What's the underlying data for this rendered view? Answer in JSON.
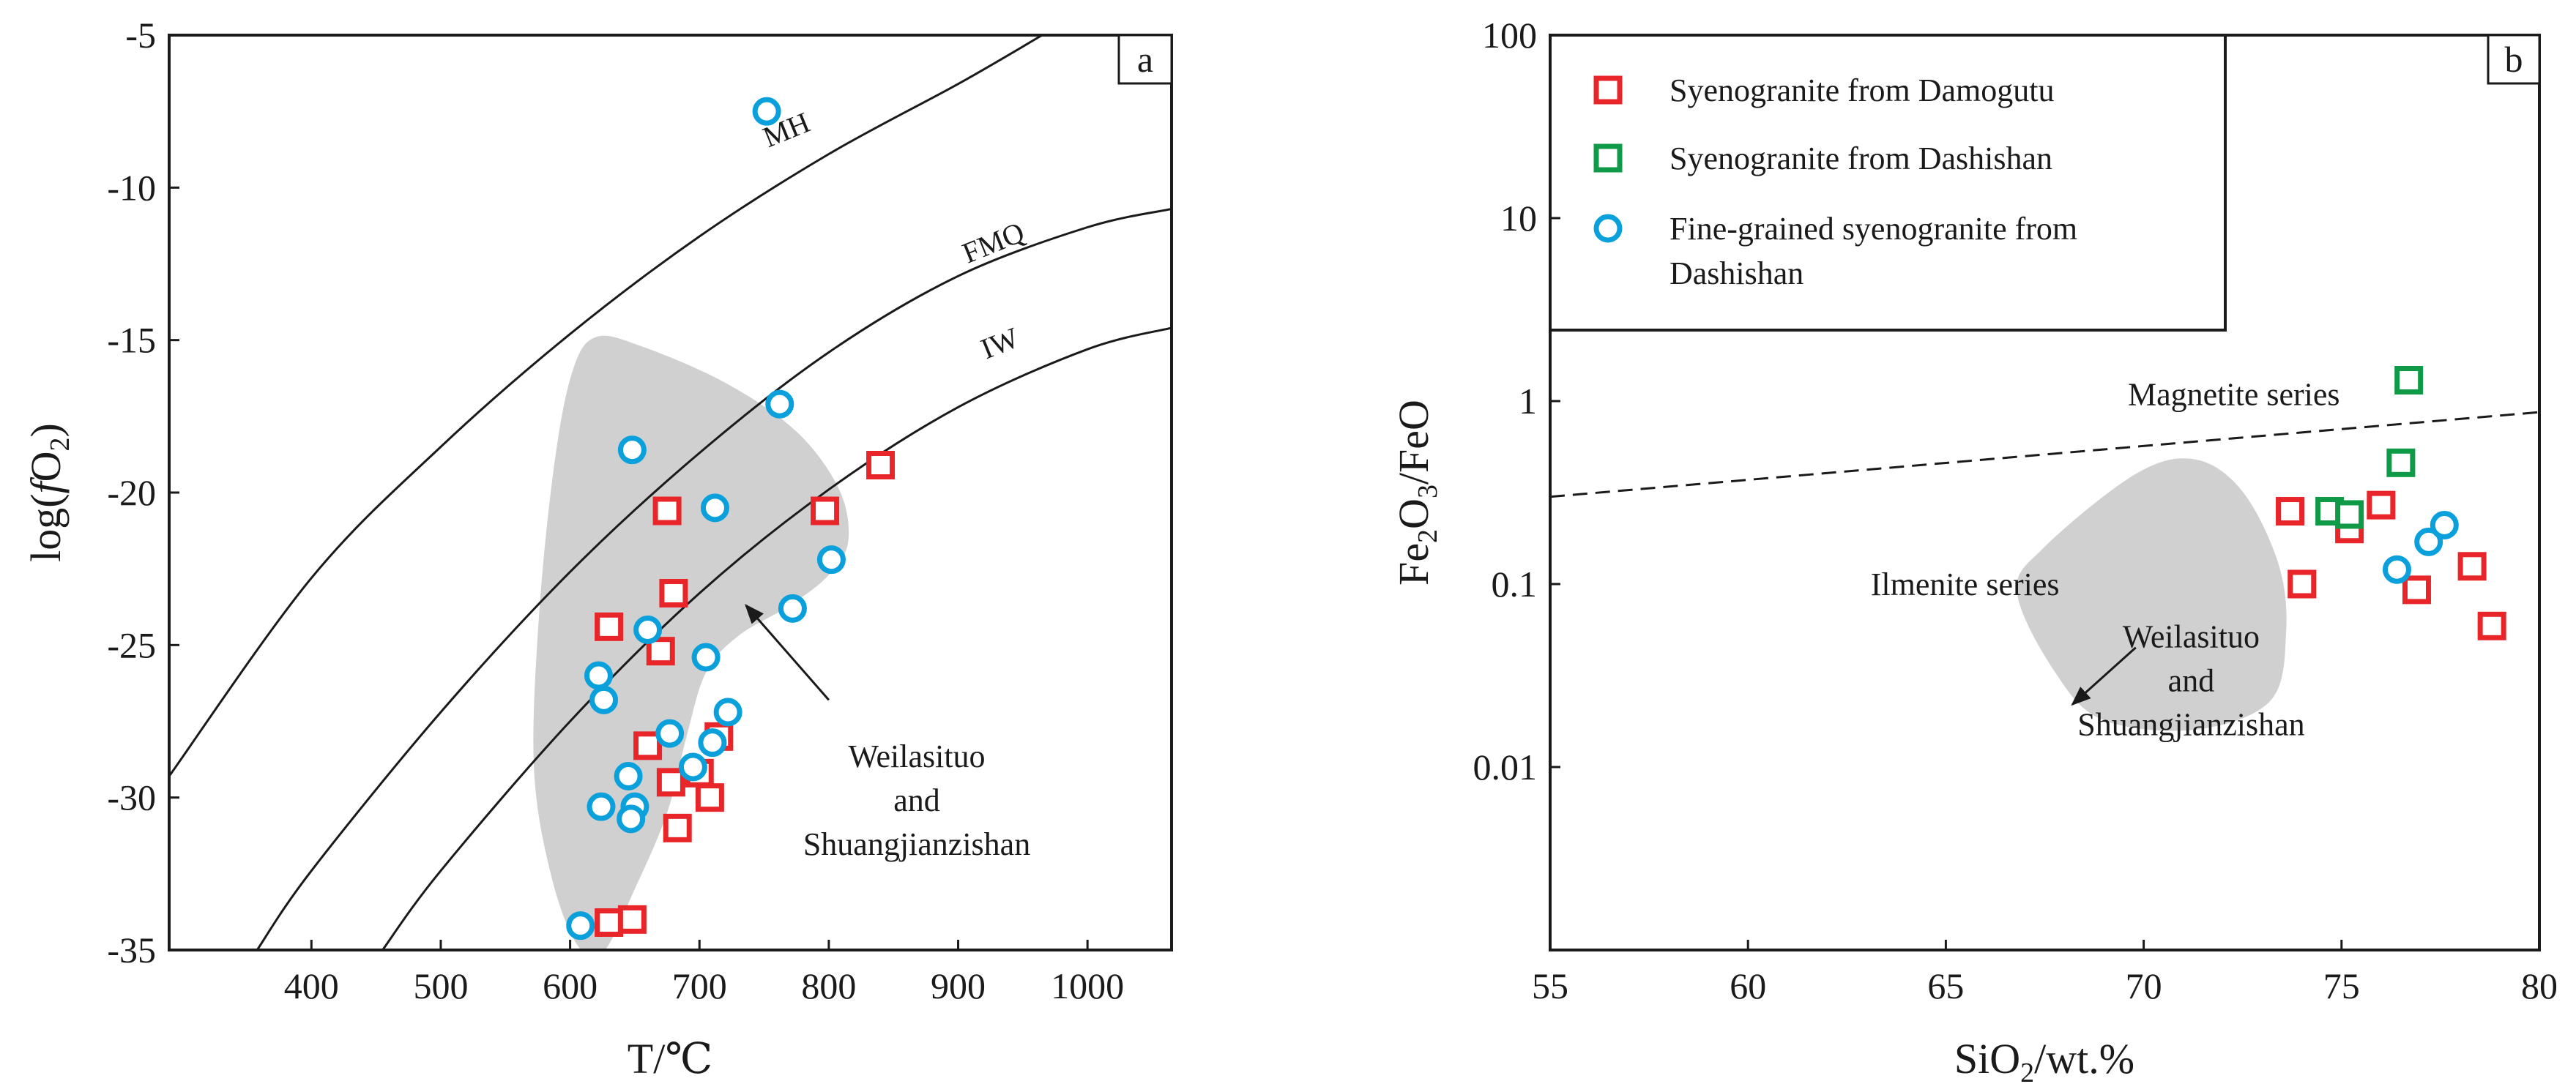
{
  "chart_data": [
    {
      "panel": "a",
      "type": "scatter",
      "xlabel": "T/℃",
      "ylabel": "log(fO2)",
      "ylabel_parts": {
        "prefix": "log(",
        "italic": "f",
        "main": "O",
        "sub": "2",
        "suffix": ")"
      },
      "xlim": [
        290,
        1065
      ],
      "ylim": [
        -35,
        -5
      ],
      "xticks": [
        400,
        500,
        600,
        700,
        800,
        900,
        1000
      ],
      "yticks": [
        -5,
        -10,
        -15,
        -20,
        -25,
        -30,
        -35
      ],
      "xtick_labels": [
        "400",
        "500",
        "600",
        "700",
        "800",
        "900",
        "1000"
      ],
      "ytick_labels": [
        "-5",
        "-10",
        "-15",
        "-20",
        "-25",
        "-30",
        "-35"
      ],
      "curves": [
        {
          "label": "MH",
          "label_at": [
            770,
            -8.4
          ],
          "points": [
            [
              290,
              -29.3
            ],
            [
              400,
              -22.8
            ],
            [
              500,
              -18.5
            ],
            [
              600,
              -14.8
            ],
            [
              700,
              -11.6
            ],
            [
              800,
              -8.9
            ],
            [
              900,
              -6.6
            ],
            [
              965,
              -5.0
            ]
          ]
        },
        {
          "label": "FMQ",
          "label_at": [
            930,
            -12.1
          ],
          "points": [
            [
              358,
              -35.0
            ],
            [
              400,
              -32.4
            ],
            [
              500,
              -27.2
            ],
            [
              600,
              -22.6
            ],
            [
              700,
              -18.7
            ],
            [
              800,
              -15.4
            ],
            [
              900,
              -12.9
            ],
            [
              1000,
              -11.3
            ],
            [
              1065,
              -10.7
            ]
          ]
        },
        {
          "label": "IW",
          "label_at": [
            935,
            -15.4
          ],
          "points": [
            [
              455,
              -35.0
            ],
            [
              500,
              -32.4
            ],
            [
              600,
              -27.5
            ],
            [
              700,
              -23.3
            ],
            [
              800,
              -19.9
            ],
            [
              900,
              -17.2
            ],
            [
              1000,
              -15.3
            ],
            [
              1065,
              -14.6
            ]
          ]
        }
      ],
      "field": {
        "label_lines": [
          "Weilasituo",
          "and",
          "Shuangjianzishan"
        ],
        "label_at": [
          868,
          -29
        ],
        "arrow_from": [
          800,
          -26.8
        ],
        "arrow_to": [
          736,
          -23.7
        ],
        "outline": [
          [
            620,
            -14.9
          ],
          [
            655,
            -15.2
          ],
          [
            720,
            -16.4
          ],
          [
            775,
            -18.0
          ],
          [
            808,
            -19.9
          ],
          [
            815,
            -21.6
          ],
          [
            800,
            -22.7
          ],
          [
            770,
            -23.7
          ],
          [
            730,
            -24.7
          ],
          [
            705,
            -25.9
          ],
          [
            690,
            -28.0
          ],
          [
            675,
            -30.5
          ],
          [
            650,
            -33.0
          ],
          [
            625,
            -35.1
          ],
          [
            605,
            -34.8
          ],
          [
            585,
            -32.5
          ],
          [
            572,
            -29.0
          ],
          [
            576,
            -24.0
          ],
          [
            588,
            -19.0
          ],
          [
            602,
            -16.0
          ]
        ]
      },
      "series": [
        {
          "name": "Syenogranite from Damogutu",
          "marker": "square",
          "color": "#e8262a",
          "points": [
            [
              840,
              -19.1
            ],
            [
              675,
              -20.6
            ],
            [
              797,
              -20.6
            ],
            [
              680,
              -23.3
            ],
            [
              630,
              -24.4
            ],
            [
              670,
              -25.2
            ],
            [
              660,
              -28.3
            ],
            [
              715,
              -28.0
            ],
            [
              678,
              -29.5
            ],
            [
              700,
              -29.2
            ],
            [
              708,
              -30.0
            ],
            [
              683,
              -31.0
            ],
            [
              630,
              -34.1
            ],
            [
              648,
              -34.0
            ]
          ]
        },
        {
          "name": "Fine-grained syenogranite from Dashishan",
          "marker": "circle",
          "color": "#0aa0dc",
          "points": [
            [
              752,
              -7.5
            ],
            [
              762,
              -17.1
            ],
            [
              648,
              -18.6
            ],
            [
              712,
              -20.5
            ],
            [
              802,
              -22.2
            ],
            [
              660,
              -24.5
            ],
            [
              772,
              -23.8
            ],
            [
              705,
              -25.4
            ],
            [
              622,
              -26.0
            ],
            [
              626,
              -26.8
            ],
            [
              677,
              -27.9
            ],
            [
              722,
              -27.2
            ],
            [
              710,
              -28.2
            ],
            [
              695,
              -29.0
            ],
            [
              645,
              -29.3
            ],
            [
              650,
              -30.3
            ],
            [
              624,
              -30.3
            ],
            [
              647,
              -30.7
            ],
            [
              608,
              -34.2
            ]
          ]
        }
      ],
      "panel_tag": "a"
    },
    {
      "panel": "b",
      "type": "scatter",
      "yscale": "log",
      "xlabel": "SiO2/wt.%",
      "xlabel_parts": {
        "main": "SiO",
        "sub": "2",
        "suffix": "/wt.%"
      },
      "ylabel": "Fe2O3/FeO",
      "ylabel_parts": {
        "a": "Fe",
        "sub1": "2",
        "b": "O",
        "sub2": "3",
        "c": "/FeO"
      },
      "xlim": [
        55,
        80
      ],
      "ylim": [
        0.001,
        100
      ],
      "xticks": [
        55,
        60,
        65,
        70,
        75,
        80
      ],
      "xtick_labels": [
        "55",
        "60",
        "65",
        "70",
        "75",
        "80"
      ],
      "yticks": [
        100,
        10,
        1,
        0.1,
        0.01
      ],
      "ytick_labels": [
        "100",
        "10",
        "1",
        "0.1",
        "0.01"
      ],
      "boundary_line": {
        "style": "dashed",
        "from": [
          55,
          0.3
        ],
        "to": [
          80,
          0.87
        ]
      },
      "region_labels": [
        {
          "text": "Magnetite series",
          "at": [
            69.6,
            0.95
          ]
        },
        {
          "text": "Ilmenite series",
          "at": [
            63.1,
            0.087
          ]
        }
      ],
      "field": {
        "label_lines": [
          "Weilasituo",
          "and",
          "Shuangjianzishan"
        ],
        "label_at": [
          71.2,
          0.045
        ],
        "arrow_from": [
          69.8,
          0.045
        ],
        "arrow_to": [
          68.2,
          0.022
        ],
        "outline": [
          [
            71.3,
            0.48
          ],
          [
            72.5,
            0.32
          ],
          [
            73.4,
            0.13
          ],
          [
            73.6,
            0.055
          ],
          [
            73.2,
            0.023
          ],
          [
            71.3,
            0.016
          ],
          [
            69.0,
            0.018
          ],
          [
            67.8,
            0.032
          ],
          [
            66.8,
            0.09
          ],
          [
            67.5,
            0.16
          ],
          [
            69.8,
            0.4
          ]
        ]
      },
      "series": [
        {
          "name": "Syenogranite from Damogutu",
          "marker": "square",
          "color": "#e8262a",
          "points": [
            [
              73.7,
              0.25
            ],
            [
              74.0,
              0.1
            ],
            [
              75.2,
              0.2
            ],
            [
              76.0,
              0.27
            ],
            [
              76.9,
              0.093
            ],
            [
              78.3,
              0.125
            ],
            [
              78.8,
              0.059
            ]
          ]
        },
        {
          "name": "Syenogranite from Dashishan",
          "marker": "square",
          "color": "#0e9a47",
          "points": [
            [
              76.7,
              1.3
            ],
            [
              76.5,
              0.46
            ],
            [
              74.7,
              0.25
            ],
            [
              75.2,
              0.24
            ]
          ]
        },
        {
          "name": "Fine-grained syenogranite from Dashishan",
          "marker": "circle",
          "color": "#0aa0dc",
          "points": [
            [
              76.4,
              0.12
            ],
            [
              77.2,
              0.17
            ],
            [
              77.6,
              0.21
            ]
          ]
        }
      ],
      "legend": {
        "position": "top-left",
        "entries": [
          {
            "marker": "square",
            "color": "#e8262a",
            "lines": [
              "Syenogranite from Damogutu"
            ]
          },
          {
            "marker": "square",
            "color": "#0e9a47",
            "lines": [
              "Syenogranite from Dashishan"
            ]
          },
          {
            "marker": "circle",
            "color": "#0aa0dc",
            "lines": [
              "Fine-grained syenogranite from",
              "Dashishan"
            ]
          }
        ]
      },
      "panel_tag": "b"
    }
  ]
}
